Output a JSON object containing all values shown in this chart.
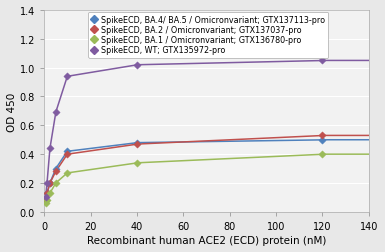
{
  "title": "",
  "xlabel": "Recombinant human ACE2 (ECD) protein (nM)",
  "ylabel": "OD 450",
  "xlim": [
    0,
    140
  ],
  "ylim": [
    0,
    1.4
  ],
  "xticks": [
    0,
    20,
    40,
    60,
    80,
    100,
    120,
    140
  ],
  "yticks": [
    0,
    0.2,
    0.4,
    0.6,
    0.8,
    1.0,
    1.2,
    1.4
  ],
  "series": [
    {
      "label": "SpikeECD, BA.4/ BA.5 / Omicronvariant; GTX137113-pro",
      "color": "#4F81BD",
      "marker": "D",
      "x_data": [
        0.625,
        1.25,
        2.5,
        5,
        10,
        40,
        120
      ],
      "y_data": [
        0.08,
        0.13,
        0.2,
        0.3,
        0.42,
        0.48,
        0.5
      ]
    },
    {
      "label": "SpikeECD, BA.2 / Omicronvariant; GTX137037-pro",
      "color": "#C0504D",
      "marker": "D",
      "x_data": [
        0.625,
        1.25,
        2.5,
        5,
        10,
        40,
        120
      ],
      "y_data": [
        0.08,
        0.13,
        0.2,
        0.28,
        0.4,
        0.47,
        0.53
      ]
    },
    {
      "label": "SpikeECD, BA.1 / Omicronvariant; GTX136780-pro",
      "color": "#9BBB59",
      "marker": "D",
      "x_data": [
        0.625,
        1.25,
        2.5,
        5,
        10,
        40,
        120
      ],
      "y_data": [
        0.06,
        0.08,
        0.13,
        0.2,
        0.27,
        0.34,
        0.4
      ]
    },
    {
      "label": "SpikeECD, WT; GTX135972-pro",
      "color": "#7F5BA0",
      "marker": "D",
      "x_data": [
        0.625,
        1.25,
        2.5,
        5,
        10,
        40,
        120
      ],
      "y_data": [
        0.1,
        0.2,
        0.44,
        0.69,
        0.94,
        1.02,
        1.05
      ]
    }
  ],
  "plot_bg": "#F2F2F2",
  "fig_bg": "#E8E8E8",
  "legend_fontsize": 5.8,
  "axis_label_fontsize": 7.5,
  "tick_fontsize": 7.0
}
